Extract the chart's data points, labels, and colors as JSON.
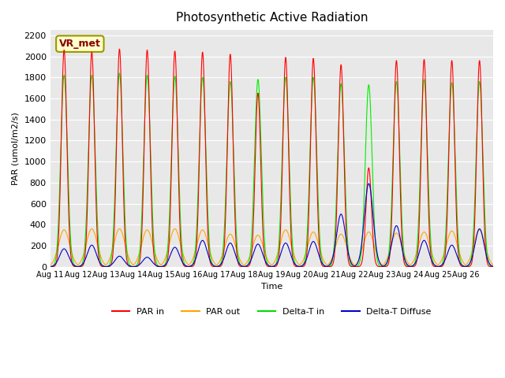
{
  "title": "Photosynthetic Active Radiation",
  "ylabel": "PAR (umol/m2/s)",
  "xlabel": "Time",
  "annotation": "VR_met",
  "ylim": [
    0,
    2250
  ],
  "yticks": [
    0,
    200,
    400,
    600,
    800,
    1000,
    1200,
    1400,
    1600,
    1800,
    2000,
    2200
  ],
  "x_labels": [
    "Aug 11",
    "Aug 12",
    "Aug 13",
    "Aug 14",
    "Aug 15",
    "Aug 16",
    "Aug 17",
    "Aug 18",
    "Aug 19",
    "Aug 20",
    "Aug 21",
    "Aug 22",
    "Aug 23",
    "Aug 24",
    "Aug 25",
    "Aug 26",
    ""
  ],
  "background_color": "#e8e8e8",
  "legend_entries": [
    "PAR in",
    "PAR out",
    "Delta-T in",
    "Delta-T Diffuse"
  ],
  "legend_colors": [
    "#ff0000",
    "#ffa500",
    "#00dd00",
    "#0000cc"
  ],
  "num_days": 16,
  "pts_per_day": 144,
  "par_in_peaks": [
    2060,
    2040,
    2070,
    2060,
    2050,
    2040,
    2020,
    1650,
    1990,
    1980,
    1920,
    940,
    1960,
    1970,
    1960,
    1960
  ],
  "par_out_peaks": [
    350,
    360,
    360,
    350,
    360,
    350,
    310,
    300,
    350,
    330,
    310,
    330,
    320,
    330,
    340,
    350
  ],
  "delta_t_in_peaks": [
    1820,
    1820,
    1840,
    1820,
    1810,
    1800,
    1760,
    1780,
    1800,
    1800,
    1740,
    1730,
    1760,
    1780,
    1750,
    1760
  ],
  "delta_t_diff_peaks": [
    170,
    205,
    100,
    90,
    185,
    250,
    225,
    215,
    225,
    240,
    500,
    790,
    390,
    250,
    205,
    360
  ],
  "par_in_color": "#ff0000",
  "par_out_color": "#ffa500",
  "delta_t_in_color": "#00ee00",
  "delta_t_diff_color": "#0000cc"
}
